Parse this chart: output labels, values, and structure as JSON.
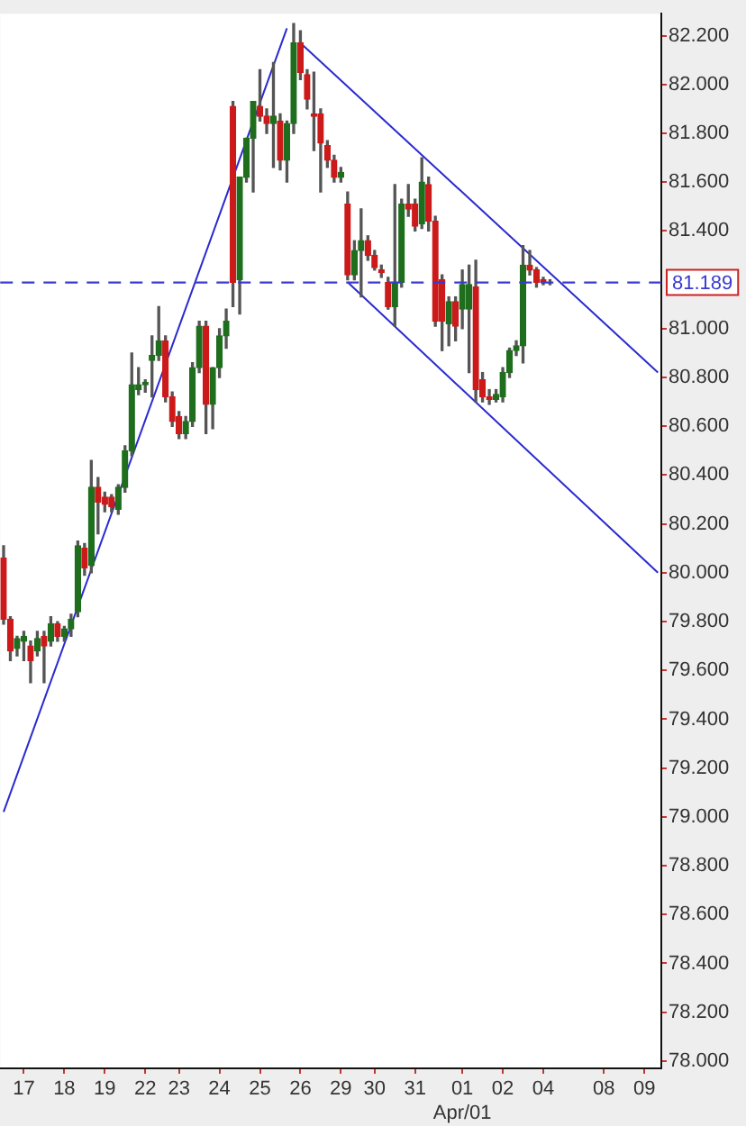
{
  "chart_data": {
    "type": "candlestick",
    "categories": [
      null,
      null,
      null,
      "17",
      null,
      null,
      null,
      null,
      null,
      "18",
      null,
      null,
      null,
      null,
      null,
      "19",
      null,
      null,
      null,
      null,
      null,
      "22",
      null,
      null,
      null,
      null,
      "23",
      null,
      null,
      null,
      null,
      null,
      "24",
      null,
      null,
      null,
      null,
      null,
      "25",
      null,
      null,
      null,
      null,
      null,
      "26",
      null,
      null,
      null,
      null,
      null,
      "29",
      null,
      null,
      null,
      null,
      "30",
      null,
      null,
      null,
      null,
      null,
      "31",
      null,
      null,
      null,
      null,
      null,
      null,
      "01\nApr/01",
      null,
      null,
      null,
      null,
      null,
      "02",
      null,
      null,
      null,
      null,
      null,
      "04",
      null,
      null,
      null,
      null,
      null,
      null,
      null,
      null,
      "08",
      null,
      null,
      null,
      null,
      null,
      "09",
      null,
      null
    ],
    "ohlc": [
      [
        80.06,
        80.11,
        79.79,
        79.81
      ],
      [
        79.81,
        79.82,
        79.64,
        79.68
      ],
      [
        79.69,
        79.74,
        79.66,
        79.73
      ],
      [
        79.72,
        79.76,
        79.64,
        79.74
      ],
      [
        79.7,
        79.72,
        79.55,
        79.64
      ],
      [
        79.68,
        79.76,
        79.66,
        79.73
      ],
      [
        79.74,
        79.76,
        79.55,
        79.7
      ],
      [
        79.72,
        79.82,
        79.7,
        79.79
      ],
      [
        79.79,
        79.8,
        79.72,
        79.74
      ],
      [
        79.74,
        79.78,
        79.72,
        79.77
      ],
      [
        79.77,
        79.83,
        79.74,
        79.81
      ],
      [
        79.84,
        80.13,
        79.82,
        80.11
      ],
      [
        80.1,
        80.12,
        79.99,
        80.02
      ],
      [
        80.03,
        80.46,
        80.0,
        80.35
      ],
      [
        80.35,
        80.39,
        80.16,
        80.29
      ],
      [
        80.31,
        80.33,
        80.25,
        80.28
      ],
      [
        80.31,
        80.32,
        80.25,
        80.27
      ],
      [
        80.26,
        80.36,
        80.24,
        80.35
      ],
      [
        80.35,
        80.52,
        80.33,
        80.5
      ],
      [
        80.5,
        80.9,
        80.48,
        80.77
      ],
      [
        80.75,
        80.84,
        80.73,
        80.77
      ],
      [
        80.77,
        80.79,
        80.74,
        80.78
      ],
      [
        80.87,
        80.97,
        80.72,
        80.89
      ],
      [
        80.89,
        81.09,
        80.87,
        80.95
      ],
      [
        80.95,
        80.97,
        80.7,
        80.72
      ],
      [
        80.72,
        80.74,
        80.6,
        80.62
      ],
      [
        80.64,
        80.66,
        80.55,
        80.57
      ],
      [
        80.57,
        80.64,
        80.55,
        80.62
      ],
      [
        80.62,
        80.86,
        80.6,
        80.84
      ],
      [
        80.84,
        81.03,
        80.82,
        81.01
      ],
      [
        81.01,
        81.03,
        80.57,
        80.69
      ],
      [
        80.69,
        80.84,
        80.59,
        80.84
      ],
      [
        80.84,
        81.0,
        80.8,
        80.97
      ],
      [
        80.97,
        81.08,
        80.92,
        81.03
      ],
      [
        81.91,
        81.93,
        81.09,
        81.19
      ],
      [
        81.2,
        81.62,
        81.06,
        81.62
      ],
      [
        81.62,
        81.78,
        81.6,
        81.78
      ],
      [
        81.78,
        81.93,
        81.56,
        81.93
      ],
      [
        81.91,
        82.06,
        81.85,
        81.87
      ],
      [
        81.87,
        81.9,
        81.8,
        81.84
      ],
      [
        81.84,
        82.09,
        81.66,
        81.87
      ],
      [
        81.85,
        81.88,
        81.65,
        81.69
      ],
      [
        81.69,
        81.85,
        81.6,
        81.84
      ],
      [
        81.84,
        82.25,
        81.8,
        82.17
      ],
      [
        82.17,
        82.22,
        82.02,
        82.05
      ],
      [
        82.04,
        82.06,
        81.9,
        81.94
      ],
      [
        81.88,
        82.05,
        81.73,
        81.87
      ],
      [
        81.88,
        81.9,
        81.56,
        81.76
      ],
      [
        81.75,
        81.77,
        81.66,
        81.69
      ],
      [
        81.69,
        81.71,
        81.6,
        81.62
      ],
      [
        81.62,
        81.66,
        81.6,
        81.64
      ],
      [
        81.51,
        81.56,
        81.2,
        81.22
      ],
      [
        81.22,
        81.36,
        81.2,
        81.32
      ],
      [
        81.32,
        81.49,
        81.13,
        81.36
      ],
      [
        81.36,
        81.38,
        81.28,
        81.3
      ],
      [
        81.3,
        81.32,
        81.24,
        81.25
      ],
      [
        81.24,
        81.26,
        81.21,
        81.23
      ],
      [
        81.19,
        81.21,
        81.08,
        81.09
      ],
      [
        81.09,
        81.59,
        81.01,
        81.19
      ],
      [
        81.19,
        81.53,
        81.17,
        81.51
      ],
      [
        81.51,
        81.59,
        81.46,
        81.49
      ],
      [
        81.51,
        81.53,
        81.4,
        81.42
      ],
      [
        81.43,
        81.7,
        81.41,
        81.6
      ],
      [
        81.59,
        81.62,
        81.4,
        81.44
      ],
      [
        81.44,
        81.46,
        81.01,
        81.03
      ],
      [
        81.2,
        81.22,
        80.91,
        81.03
      ],
      [
        81.02,
        81.13,
        80.93,
        81.11
      ],
      [
        81.11,
        81.13,
        80.95,
        81.01
      ],
      [
        81.08,
        81.24,
        81.0,
        81.18
      ],
      [
        81.08,
        81.26,
        80.82,
        81.18
      ],
      [
        81.17,
        81.28,
        80.7,
        80.75
      ],
      [
        80.79,
        80.82,
        80.7,
        80.72
      ],
      [
        80.72,
        80.75,
        80.69,
        80.71
      ],
      [
        80.71,
        80.75,
        80.7,
        80.73
      ],
      [
        80.72,
        80.84,
        80.7,
        80.82
      ],
      [
        80.82,
        80.92,
        80.8,
        80.91
      ],
      [
        80.91,
        80.95,
        80.89,
        80.93
      ],
      [
        80.93,
        81.34,
        80.86,
        81.26
      ],
      [
        81.26,
        81.32,
        81.22,
        81.24
      ],
      [
        81.24,
        81.25,
        81.17,
        81.19
      ],
      [
        81.2,
        81.21,
        81.18,
        81.19
      ],
      [
        81.19,
        81.2,
        81.18,
        81.19
      ],
      null,
      null,
      null,
      null,
      null,
      null,
      null,
      null,
      null,
      null,
      null,
      null,
      null,
      null,
      null,
      null
    ],
    "series": [
      {
        "type": "line",
        "color": "#2a2ad0",
        "values": [
          79.02,
          null,
          null,
          null,
          null,
          null,
          null,
          null,
          null,
          null,
          null,
          null,
          null,
          null,
          null,
          null,
          null,
          null,
          null,
          null,
          null,
          null,
          null,
          null,
          null,
          null,
          null,
          null,
          null,
          null,
          null,
          null,
          null,
          null,
          null,
          null,
          null,
          null,
          null,
          null,
          null,
          null,
          82.23,
          null,
          null,
          null,
          null,
          null,
          null,
          null,
          null,
          null,
          null,
          null,
          null,
          null,
          null,
          null,
          null,
          null,
          null,
          null,
          null,
          null,
          null,
          null,
          null,
          null,
          null,
          null,
          null,
          null,
          null,
          null,
          null,
          null,
          null,
          null,
          null,
          null,
          null,
          null,
          null,
          null,
          null,
          null,
          null,
          null,
          null,
          null,
          null,
          null,
          null,
          null,
          null,
          null,
          null,
          null
        ]
      },
      {
        "type": "line",
        "color": "#2a2ad0",
        "values": [
          null,
          null,
          null,
          null,
          null,
          null,
          null,
          null,
          null,
          null,
          null,
          null,
          null,
          null,
          null,
          null,
          null,
          null,
          null,
          null,
          null,
          null,
          null,
          null,
          null,
          null,
          null,
          null,
          null,
          null,
          null,
          null,
          null,
          null,
          null,
          null,
          null,
          null,
          null,
          null,
          null,
          null,
          null,
          null,
          82.17,
          null,
          null,
          null,
          null,
          null,
          null,
          null,
          null,
          null,
          null,
          null,
          null,
          null,
          null,
          null,
          null,
          null,
          null,
          null,
          null,
          null,
          null,
          null,
          null,
          null,
          null,
          null,
          null,
          null,
          null,
          null,
          null,
          null,
          null,
          null,
          null,
          null,
          null,
          null,
          null,
          null,
          null,
          null,
          null,
          null,
          null,
          null,
          null,
          null,
          null,
          null,
          null,
          80.82
        ]
      },
      {
        "type": "line",
        "color": "#2a2ad0",
        "values": [
          null,
          null,
          null,
          null,
          null,
          null,
          null,
          null,
          null,
          null,
          null,
          null,
          null,
          null,
          null,
          null,
          null,
          null,
          null,
          null,
          null,
          null,
          null,
          null,
          null,
          null,
          null,
          null,
          null,
          null,
          null,
          null,
          null,
          null,
          null,
          null,
          null,
          null,
          null,
          null,
          null,
          null,
          null,
          null,
          null,
          null,
          null,
          null,
          null,
          null,
          null,
          81.19,
          null,
          null,
          null,
          null,
          null,
          null,
          null,
          null,
          null,
          null,
          null,
          null,
          null,
          null,
          null,
          null,
          null,
          null,
          null,
          null,
          null,
          null,
          null,
          null,
          null,
          null,
          null,
          null,
          null,
          null,
          null,
          null,
          null,
          null,
          null,
          null,
          null,
          null,
          null,
          null,
          null,
          null,
          null,
          null,
          null,
          80.0
        ]
      }
    ],
    "ref_lines": [
      {
        "axis": "y",
        "value": 81.189,
        "label": "81.189",
        "color": "#3a3ad0",
        "line_style": "dashed"
      }
    ],
    "ylim": [
      77.97,
      82.29
    ],
    "yticks": [
      {
        "value": 78,
        "label": "78.000"
      },
      {
        "value": 78.2,
        "label": "78.200"
      },
      {
        "value": 78.4,
        "label": "78.400"
      },
      {
        "value": 78.6,
        "label": "78.600"
      },
      {
        "value": 78.8,
        "label": "78.800"
      },
      {
        "value": 79,
        "label": "79.000"
      },
      {
        "value": 79.2,
        "label": "79.200"
      },
      {
        "value": 79.4,
        "label": "79.400"
      },
      {
        "value": 79.6,
        "label": "79.600"
      },
      {
        "value": 79.8,
        "label": "79.800"
      },
      {
        "value": 80,
        "label": "80.000"
      },
      {
        "value": 80.2,
        "label": "80.200"
      },
      {
        "value": 80.4,
        "label": "80.400"
      },
      {
        "value": 80.6,
        "label": "80.600"
      },
      {
        "value": 80.8,
        "label": "80.800"
      },
      {
        "value": 81,
        "label": "81.000"
      },
      {
        "value": 81.4,
        "label": "81.400"
      },
      {
        "value": 81.6,
        "label": "81.600"
      },
      {
        "value": 81.8,
        "label": "81.800"
      },
      {
        "value": 82,
        "label": "82.000"
      },
      {
        "value": 82.2,
        "label": "82.200"
      }
    ]
  }
}
